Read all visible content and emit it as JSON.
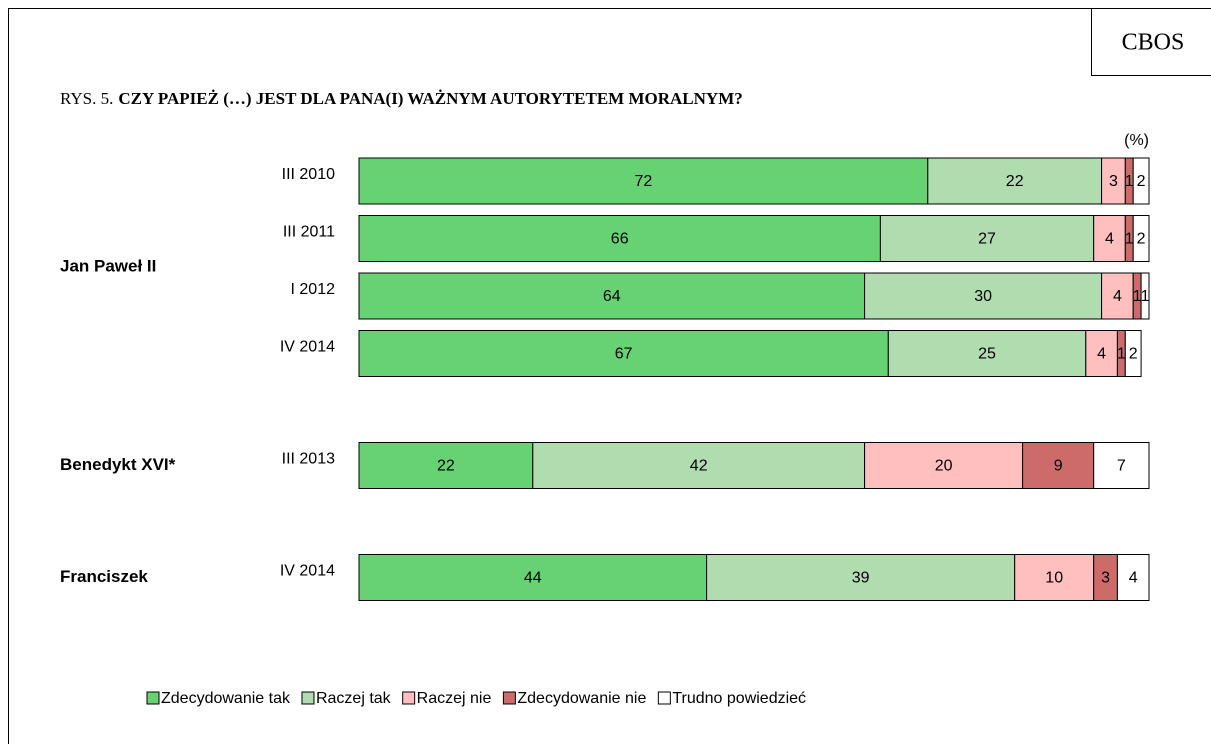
{
  "chart_data": {
    "type": "stacked-barh",
    "source": "CBOS",
    "figure_label": "RYS. 5.",
    "title": "CZY PAPIEŻ (…) JEST DLA PANA(I) WAŻNYM AUTORYTETEM MORALNYM?",
    "unit_label": "(%)",
    "category_groups": [
      "Jan Paweł II",
      "Jan Paweł II",
      "Jan Paweł II",
      "Jan Paweł II",
      "Benedykt XVI*",
      "Franciszek"
    ],
    "categories": [
      "III 2010",
      "III 2011",
      "I 2012",
      "IV 2014",
      "III 2013",
      "IV 2014"
    ],
    "xlim": [
      0,
      100
    ],
    "series": [
      {
        "name": "Zdecydowanie tak",
        "color": "#66d273",
        "values": [
          72,
          66,
          64,
          67,
          22,
          44
        ]
      },
      {
        "name": "Raczej tak",
        "color": "#b0dcb0",
        "values": [
          22,
          27,
          30,
          25,
          42,
          39
        ]
      },
      {
        "name": "Raczej nie",
        "color": "#ffbfbf",
        "values": [
          3,
          4,
          4,
          4,
          20,
          10
        ]
      },
      {
        "name": "Zdecydowanie nie",
        "color": "#cd6b6b",
        "values": [
          1,
          1,
          1,
          1,
          9,
          3
        ]
      },
      {
        "name": "Trudno powiedzieć",
        "color": "#ffffff",
        "values": [
          2,
          2,
          1,
          2,
          7,
          4
        ]
      }
    ]
  }
}
